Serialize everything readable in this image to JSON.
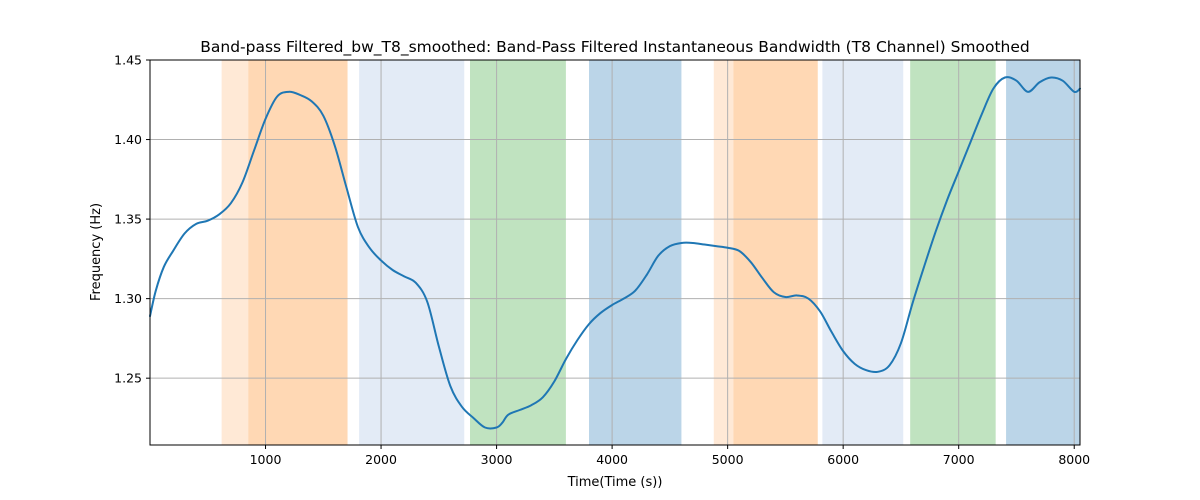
{
  "chart_data": {
    "type": "line",
    "title": "Band-pass Filtered_bw_T8_smoothed: Band-Pass Filtered Instantaneous Bandwidth (T8 Channel) Smoothed",
    "xlabel": "Time(Time (s))",
    "ylabel": "Frequency (Hz)",
    "xlim": [
      0,
      8050
    ],
    "ylim": [
      1.208,
      1.45
    ],
    "xticks": [
      1000,
      2000,
      3000,
      4000,
      5000,
      6000,
      7000,
      8000
    ],
    "xtick_labels": [
      "1000",
      "2000",
      "3000",
      "4000",
      "5000",
      "6000",
      "7000",
      "8000"
    ],
    "yticks": [
      1.25,
      1.3,
      1.35,
      1.4,
      1.45
    ],
    "ytick_labels": [
      "1.25",
      "1.30",
      "1.35",
      "1.40",
      "1.45"
    ],
    "grid": true,
    "line_color": "#1f77b4",
    "bands": [
      {
        "x0": 620,
        "x1": 850,
        "color": "#ffe9d6"
      },
      {
        "x0": 850,
        "x1": 1710,
        "color": "#ffd8b4"
      },
      {
        "x0": 1810,
        "x1": 2720,
        "color": "#e3ebf6"
      },
      {
        "x0": 2770,
        "x1": 3600,
        "color": "#c0e3c0"
      },
      {
        "x0": 3800,
        "x1": 4600,
        "color": "#bbd5e8"
      },
      {
        "x0": 4880,
        "x1": 5050,
        "color": "#ffe9d6"
      },
      {
        "x0": 5050,
        "x1": 5780,
        "color": "#ffd8b4"
      },
      {
        "x0": 5820,
        "x1": 6520,
        "color": "#e3ebf6"
      },
      {
        "x0": 6580,
        "x1": 7320,
        "color": "#c0e3c0"
      },
      {
        "x0": 7410,
        "x1": 8050,
        "color": "#bbd5e8"
      }
    ],
    "series": [
      {
        "x": [
          0,
          50,
          120,
          200,
          300,
          400,
          500,
          600,
          700,
          800,
          900,
          1000,
          1100,
          1200,
          1300,
          1400,
          1500,
          1600,
          1700,
          1800,
          1900,
          2000,
          2100,
          2200,
          2300,
          2400,
          2500,
          2600,
          2700,
          2800,
          2900,
          3000,
          3050,
          3100,
          3200,
          3300,
          3400,
          3500,
          3600,
          3700,
          3800,
          3900,
          4000,
          4100,
          4200,
          4300,
          4400,
          4500,
          4600,
          4700,
          4800,
          4900,
          5000,
          5100,
          5200,
          5300,
          5400,
          5500,
          5600,
          5700,
          5800,
          5900,
          6000,
          6100,
          6200,
          6300,
          6400,
          6500,
          6600,
          6700,
          6800,
          6900,
          7000,
          7100,
          7200,
          7300,
          7400,
          7500,
          7600,
          7700,
          7800,
          7900,
          8000,
          8050
        ],
        "y": [
          1.289,
          1.305,
          1.32,
          1.33,
          1.341,
          1.347,
          1.349,
          1.353,
          1.36,
          1.373,
          1.393,
          1.413,
          1.427,
          1.43,
          1.428,
          1.424,
          1.415,
          1.396,
          1.37,
          1.345,
          1.332,
          1.324,
          1.318,
          1.314,
          1.31,
          1.298,
          1.27,
          1.245,
          1.232,
          1.225,
          1.219,
          1.219,
          1.222,
          1.227,
          1.23,
          1.233,
          1.238,
          1.248,
          1.262,
          1.274,
          1.284,
          1.291,
          1.296,
          1.3,
          1.305,
          1.315,
          1.327,
          1.333,
          1.335,
          1.335,
          1.334,
          1.333,
          1.332,
          1.33,
          1.323,
          1.313,
          1.304,
          1.301,
          1.302,
          1.3,
          1.292,
          1.279,
          1.267,
          1.259,
          1.255,
          1.254,
          1.258,
          1.272,
          1.297,
          1.32,
          1.342,
          1.362,
          1.38,
          1.398,
          1.416,
          1.432,
          1.439,
          1.437,
          1.43,
          1.436,
          1.439,
          1.437,
          1.43,
          1.432
        ]
      }
    ]
  }
}
